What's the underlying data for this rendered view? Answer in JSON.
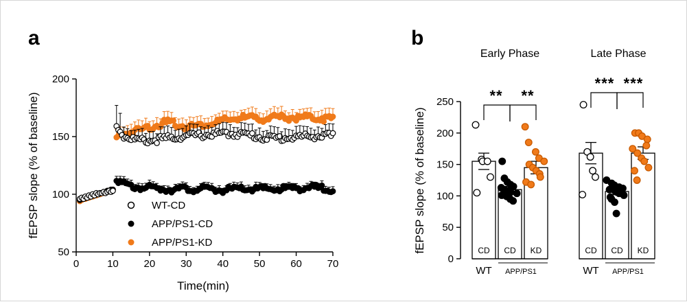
{
  "chart_data": [
    {
      "id": "a",
      "type": "scatter",
      "panel_label": "a",
      "xlabel": "Time(min)",
      "ylabel": "fEPSP slope (% of baseline)",
      "xlim": [
        0,
        70
      ],
      "ylim": [
        50,
        200
      ],
      "xticks": [
        0,
        10,
        20,
        30,
        40,
        50,
        60,
        70
      ],
      "yticks": [
        50,
        100,
        150,
        200
      ],
      "legend": {
        "placement": "lower-left",
        "entries": [
          {
            "label": "WT-CD",
            "marker": "open-circle",
            "color": "#000000"
          },
          {
            "label": "APP/PS1-CD",
            "marker": "filled-circle",
            "color": "#000000"
          },
          {
            "label": "APP/PS1-KD",
            "marker": "filled-circle",
            "color": "#f07a1a"
          }
        ]
      },
      "series": [
        {
          "name": "WT-CD",
          "color": "#000000",
          "fill": "#ffffff",
          "baseline_t": [
            1,
            1.5,
            2,
            2.5,
            3,
            3.5,
            4,
            4.5,
            5,
            5.5,
            6,
            6.5,
            7,
            7.5,
            8,
            8.5,
            9,
            9.5,
            10
          ],
          "baseline_v": [
            96,
            97,
            96,
            98,
            97,
            99,
            98,
            100,
            99,
            101,
            100,
            101,
            101,
            102,
            101,
            102,
            103,
            102,
            103
          ],
          "post_start": 11,
          "post_end": 70,
          "post_step": 0.5,
          "post_keypoints": [
            [
              11,
              160
            ],
            [
              11.5,
              158
            ],
            [
              12,
              157
            ],
            [
              13,
              152
            ],
            [
              15,
              150
            ],
            [
              17,
              148
            ],
            [
              20,
              148
            ],
            [
              25,
              150
            ],
            [
              30,
              152
            ],
            [
              35,
              153
            ],
            [
              40,
              154
            ],
            [
              45,
              154
            ],
            [
              50,
              151
            ],
            [
              55,
              150
            ],
            [
              60,
              151
            ],
            [
              65,
              152
            ],
            [
              70,
              152
            ]
          ],
          "error_upper": 8,
          "error_peak": [
            [
              11,
              18
            ],
            [
              12,
              16
            ],
            [
              13,
              10
            ]
          ]
        },
        {
          "name": "APP/PS1-CD",
          "color": "#000000",
          "fill": "#000000",
          "baseline_t": [
            1,
            1.5,
            2,
            2.5,
            3,
            3.5,
            4,
            4.5,
            5,
            5.5,
            6,
            6.5,
            7,
            7.5,
            8,
            8.5,
            9,
            9.5,
            10
          ],
          "baseline_v": [
            95,
            96,
            96,
            97,
            97,
            98,
            98,
            99,
            99,
            100,
            100,
            101,
            101,
            102,
            102,
            103,
            103,
            104,
            104
          ],
          "post_start": 11,
          "post_end": 70,
          "post_step": 0.5,
          "post_keypoints": [
            [
              11,
              116
            ],
            [
              12,
              112
            ],
            [
              13,
              110
            ],
            [
              15,
              108
            ],
            [
              20,
              107
            ],
            [
              25,
              106
            ],
            [
              30,
              106
            ],
            [
              35,
              106
            ],
            [
              40,
              105
            ],
            [
              45,
              106
            ],
            [
              50,
              106
            ],
            [
              55,
              106
            ],
            [
              60,
              107
            ],
            [
              65,
              107
            ],
            [
              70,
              106
            ]
          ],
          "error_upper": 4,
          "error_peak": []
        },
        {
          "name": "APP/PS1-KD",
          "color": "#f07a1a",
          "fill": "#f07a1a",
          "baseline_t": [
            1,
            1.5,
            2,
            2.5,
            3,
            3.5,
            4,
            4.5,
            5,
            5.5,
            6,
            6.5,
            7,
            7.5,
            8,
            8.5,
            9,
            9.5,
            10
          ],
          "baseline_v": [
            94,
            95,
            96,
            96,
            97,
            97,
            98,
            98,
            99,
            99,
            100,
            100,
            101,
            101,
            102,
            102,
            103,
            103,
            104
          ],
          "post_start": 11,
          "post_end": 70,
          "post_step": 0.5,
          "post_keypoints": [
            [
              11,
              150
            ],
            [
              12,
              152
            ],
            [
              14,
              155
            ],
            [
              17,
              157
            ],
            [
              20,
              160
            ],
            [
              25,
              164
            ],
            [
              30,
              160
            ],
            [
              35,
              162
            ],
            [
              40,
              165
            ],
            [
              45,
              168
            ],
            [
              50,
              167
            ],
            [
              55,
              168
            ],
            [
              60,
              168
            ],
            [
              65,
              168
            ],
            [
              70,
              167
            ]
          ],
          "error_upper": 7,
          "error_peak": []
        }
      ]
    },
    {
      "id": "b",
      "type": "bar",
      "panel_label": "b",
      "ylabel": "fEPSP slope (% of baseline)",
      "ylim": [
        0,
        250
      ],
      "yticks": [
        0,
        50,
        100,
        150,
        200,
        250
      ],
      "groups": [
        {
          "title": "Early Phase",
          "significance": [
            "**",
            "**"
          ],
          "bars": [
            {
              "label": "CD",
              "genotype": "WT",
              "mean": 155,
              "err": 13,
              "fill": "open",
              "points": [
                213,
                158,
                155,
                155,
                130,
                105
              ]
            },
            {
              "label": "CD",
              "genotype": "APP/PS1",
              "mean": 110,
              "err": 5,
              "fill": "black",
              "points": [
                155,
                128,
                122,
                118,
                115,
                113,
                110,
                108,
                106,
                104,
                101,
                99,
                95,
                92
              ]
            },
            {
              "label": "KD",
              "genotype": "APP/PS1",
              "mean": 145,
              "err": 10,
              "fill": "orange",
              "points": [
                210,
                185,
                170,
                160,
                155,
                150,
                145,
                140,
                135,
                130,
                122,
                118
              ]
            }
          ]
        },
        {
          "title": "Late Phase",
          "significance": [
            "***",
            "***"
          ],
          "bars": [
            {
              "label": "CD",
              "genotype": "WT",
              "mean": 168,
              "err": 17,
              "fill": "open",
              "points": [
                245,
                170,
                162,
                140,
                130,
                102
              ]
            },
            {
              "label": "CD",
              "genotype": "APP/PS1",
              "mean": 107,
              "err": 5,
              "fill": "black",
              "points": [
                125,
                120,
                117,
                114,
                112,
                110,
                108,
                106,
                104,
                101,
                98,
                95,
                90,
                72
              ]
            },
            {
              "label": "KD",
              "genotype": "APP/PS1",
              "mean": 168,
              "err": 10,
              "fill": "orange",
              "points": [
                200,
                200,
                195,
                190,
                180,
                175,
                168,
                160,
                155,
                145,
                140,
                125
              ]
            }
          ]
        }
      ],
      "genotype_labels": {
        "wt": "WT",
        "app": "APP/PS1"
      }
    }
  ],
  "colors": {
    "orange": "#f07a1a",
    "black": "#000000",
    "axis": "#000000"
  }
}
